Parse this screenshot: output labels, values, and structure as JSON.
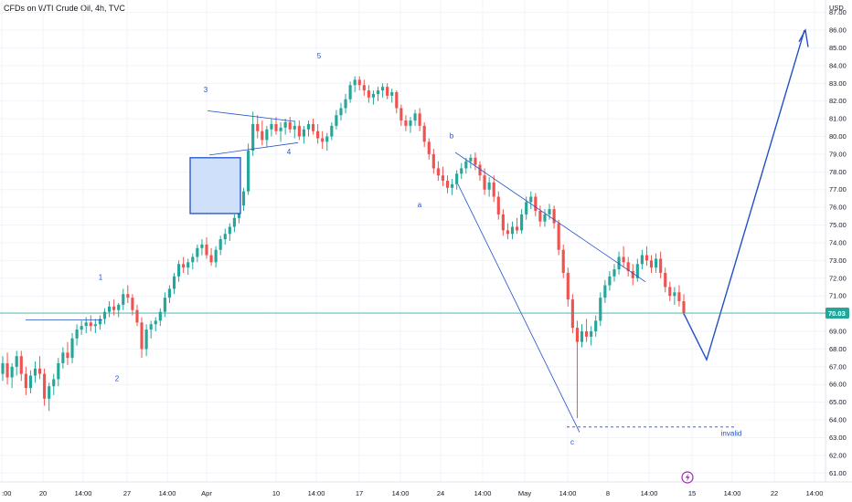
{
  "header": {
    "title": "CFDs on WTI Crude Oil, 4h, TVC"
  },
  "chart_data": {
    "type": "candlestick",
    "currency": "USD",
    "ylim": [
      60.5,
      87.6
    ],
    "y_ticks": [
      61,
      62,
      63,
      64,
      65,
      66,
      67,
      68,
      69,
      70,
      71,
      72,
      73,
      74,
      75,
      76,
      77,
      78,
      79,
      80,
      81,
      82,
      83,
      84,
      85,
      86,
      87
    ],
    "x_ticks": [
      ":00",
      "20",
      "14:00",
      "27",
      "14:00",
      "Apr",
      "10",
      "14:00",
      "17",
      "14:00",
      "24",
      "14:00",
      "May",
      "14:00",
      "8",
      "14:00",
      "15",
      "14:00",
      "22",
      "14:00"
    ],
    "last_price": "70.03",
    "colors": {
      "up": "#26a69a",
      "down": "#ef5350",
      "annotation": "#2150c8",
      "price_line": "#26a69a"
    },
    "candles": [
      [
        66.6,
        67.6,
        66.2,
        67.2
      ],
      [
        67.2,
        67.8,
        66.0,
        66.4
      ],
      [
        66.4,
        67.2,
        65.8,
        67.0
      ],
      [
        67.0,
        67.9,
        66.5,
        67.6
      ],
      [
        67.6,
        67.9,
        66.2,
        66.6
      ],
      [
        66.6,
        67.0,
        65.4,
        65.8
      ],
      [
        65.8,
        66.8,
        65.5,
        66.5
      ],
      [
        66.5,
        67.3,
        66.1,
        66.9
      ],
      [
        66.9,
        67.6,
        66.3,
        66.6
      ],
      [
        66.6,
        66.9,
        64.8,
        65.2
      ],
      [
        65.2,
        66.1,
        64.5,
        65.9
      ],
      [
        65.9,
        66.6,
        65.4,
        66.3
      ],
      [
        66.3,
        67.5,
        65.9,
        67.2
      ],
      [
        67.2,
        68.1,
        66.9,
        67.8
      ],
      [
        67.8,
        68.4,
        67.1,
        67.5
      ],
      [
        67.5,
        68.9,
        67.2,
        68.6
      ],
      [
        68.6,
        69.4,
        68.2,
        69.1
      ],
      [
        69.1,
        69.6,
        68.8,
        69.3
      ],
      [
        69.3,
        69.8,
        68.9,
        69.5
      ],
      [
        69.5,
        69.9,
        69.0,
        69.3
      ],
      [
        69.3,
        69.7,
        68.9,
        69.4
      ],
      [
        69.4,
        69.9,
        69.1,
        69.7
      ],
      [
        69.7,
        70.3,
        69.4,
        70.1
      ],
      [
        70.1,
        70.7,
        69.8,
        70.4
      ],
      [
        70.4,
        70.8,
        69.9,
        70.2
      ],
      [
        70.2,
        70.6,
        69.8,
        70.5
      ],
      [
        70.5,
        71.4,
        70.2,
        71.1
      ],
      [
        71.1,
        71.6,
        70.6,
        70.9
      ],
      [
        70.9,
        71.1,
        69.9,
        70.2
      ],
      [
        70.2,
        70.5,
        69.3,
        69.5
      ],
      [
        69.5,
        69.8,
        67.5,
        68.0
      ],
      [
        68.0,
        69.4,
        67.6,
        69.1
      ],
      [
        69.1,
        69.6,
        68.6,
        69.4
      ],
      [
        69.4,
        69.8,
        69.0,
        69.6
      ],
      [
        69.6,
        70.3,
        69.3,
        70.1
      ],
      [
        70.1,
        71.2,
        69.8,
        70.9
      ],
      [
        70.9,
        71.6,
        70.6,
        71.4
      ],
      [
        71.4,
        72.3,
        71.1,
        72.1
      ],
      [
        72.1,
        73.0,
        71.8,
        72.8
      ],
      [
        72.8,
        73.2,
        72.3,
        72.6
      ],
      [
        72.6,
        73.1,
        72.2,
        72.9
      ],
      [
        72.9,
        73.4,
        72.5,
        73.2
      ],
      [
        73.2,
        73.9,
        72.9,
        73.7
      ],
      [
        73.7,
        74.2,
        73.3,
        73.9
      ],
      [
        73.9,
        74.3,
        73.1,
        73.3
      ],
      [
        73.3,
        73.7,
        72.7,
        72.9
      ],
      [
        72.9,
        73.8,
        72.6,
        73.6
      ],
      [
        73.6,
        74.4,
        73.3,
        74.2
      ],
      [
        74.2,
        74.8,
        73.9,
        74.5
      ],
      [
        74.5,
        75.1,
        74.1,
        74.9
      ],
      [
        74.9,
        75.6,
        74.6,
        75.4
      ],
      [
        75.4,
        76.3,
        75.1,
        76.1
      ],
      [
        76.1,
        77.1,
        75.8,
        76.9
      ],
      [
        76.9,
        79.6,
        76.7,
        79.2
      ],
      [
        79.2,
        81.4,
        78.9,
        80.7
      ],
      [
        80.7,
        81.2,
        79.9,
        80.3
      ],
      [
        80.3,
        80.9,
        79.5,
        79.8
      ],
      [
        79.8,
        80.6,
        79.4,
        80.4
      ],
      [
        80.4,
        81.0,
        80.0,
        80.7
      ],
      [
        80.7,
        81.1,
        80.1,
        80.3
      ],
      [
        80.3,
        80.8,
        79.7,
        80.5
      ],
      [
        80.5,
        81.0,
        80.1,
        80.8
      ],
      [
        80.8,
        81.1,
        80.2,
        80.4
      ],
      [
        80.4,
        80.9,
        79.9,
        80.6
      ],
      [
        80.6,
        80.9,
        79.8,
        80.0
      ],
      [
        80.0,
        80.6,
        79.6,
        80.4
      ],
      [
        80.4,
        80.9,
        80.0,
        80.7
      ],
      [
        80.7,
        81.0,
        80.1,
        80.3
      ],
      [
        80.3,
        80.7,
        79.6,
        79.9
      ],
      [
        79.9,
        80.3,
        79.3,
        79.7
      ],
      [
        79.7,
        80.2,
        79.2,
        80.0
      ],
      [
        80.0,
        80.8,
        79.8,
        80.6
      ],
      [
        80.6,
        81.5,
        80.4,
        81.2
      ],
      [
        81.2,
        81.9,
        80.9,
        81.6
      ],
      [
        81.6,
        82.4,
        81.3,
        82.1
      ],
      [
        82.1,
        83.1,
        81.9,
        82.9
      ],
      [
        82.9,
        83.4,
        82.5,
        83.2
      ],
      [
        83.2,
        83.4,
        82.6,
        82.9
      ],
      [
        82.9,
        83.2,
        82.3,
        82.6
      ],
      [
        82.6,
        82.9,
        81.9,
        82.2
      ],
      [
        82.2,
        82.6,
        81.8,
        82.4
      ],
      [
        82.4,
        82.8,
        82.0,
        82.6
      ],
      [
        82.6,
        83.0,
        82.2,
        82.8
      ],
      [
        82.8,
        83.0,
        82.1,
        82.3
      ],
      [
        82.3,
        82.7,
        81.9,
        82.5
      ],
      [
        82.5,
        82.6,
        81.3,
        81.6
      ],
      [
        81.6,
        81.8,
        80.6,
        80.9
      ],
      [
        80.9,
        81.2,
        80.3,
        80.6
      ],
      [
        80.6,
        81.1,
        80.2,
        80.9
      ],
      [
        80.9,
        81.5,
        80.6,
        81.3
      ],
      [
        81.3,
        81.6,
        80.3,
        80.6
      ],
      [
        80.6,
        80.8,
        79.4,
        79.7
      ],
      [
        79.7,
        79.9,
        78.7,
        79.0
      ],
      [
        79.0,
        79.3,
        77.9,
        78.2
      ],
      [
        78.2,
        78.6,
        77.5,
        77.8
      ],
      [
        77.8,
        78.3,
        77.2,
        77.5
      ],
      [
        77.5,
        77.8,
        76.8,
        77.1
      ],
      [
        77.1,
        77.6,
        76.7,
        77.3
      ],
      [
        77.3,
        78.1,
        77.0,
        77.9
      ],
      [
        77.9,
        78.5,
        77.6,
        78.2
      ],
      [
        78.2,
        78.8,
        77.9,
        78.6
      ],
      [
        78.6,
        79.0,
        78.2,
        78.8
      ],
      [
        78.8,
        79.1,
        78.1,
        78.4
      ],
      [
        78.4,
        78.6,
        77.5,
        77.8
      ],
      [
        77.8,
        78.2,
        76.7,
        77.0
      ],
      [
        77.0,
        77.7,
        76.6,
        77.4
      ],
      [
        77.4,
        77.8,
        76.3,
        76.6
      ],
      [
        76.6,
        76.9,
        75.3,
        75.6
      ],
      [
        75.6,
        75.9,
        74.4,
        74.7
      ],
      [
        74.7,
        75.1,
        74.2,
        74.5
      ],
      [
        74.5,
        75.2,
        74.2,
        74.9
      ],
      [
        74.9,
        75.4,
        74.5,
        74.7
      ],
      [
        74.7,
        75.9,
        74.5,
        75.6
      ],
      [
        75.6,
        76.6,
        75.3,
        76.3
      ],
      [
        76.3,
        76.9,
        75.9,
        76.6
      ],
      [
        76.6,
        76.8,
        75.5,
        75.8
      ],
      [
        75.8,
        76.1,
        74.9,
        75.2
      ],
      [
        75.2,
        75.9,
        74.9,
        75.6
      ],
      [
        75.6,
        76.2,
        75.3,
        75.9
      ],
      [
        75.9,
        76.1,
        74.8,
        75.1
      ],
      [
        75.1,
        75.3,
        73.3,
        73.6
      ],
      [
        73.6,
        73.9,
        72.0,
        72.3
      ],
      [
        72.3,
        72.6,
        70.4,
        70.8
      ],
      [
        70.8,
        71.1,
        68.9,
        69.2
      ],
      [
        69.2,
        69.6,
        64.1,
        68.4
      ],
      [
        68.4,
        69.4,
        68.1,
        69.0
      ],
      [
        69.0,
        69.7,
        68.4,
        68.7
      ],
      [
        68.7,
        69.3,
        68.2,
        69.0
      ],
      [
        69.0,
        69.9,
        68.7,
        69.6
      ],
      [
        69.6,
        71.2,
        69.3,
        70.9
      ],
      [
        70.9,
        71.9,
        70.6,
        71.6
      ],
      [
        71.6,
        72.4,
        71.3,
        72.1
      ],
      [
        72.1,
        72.8,
        71.8,
        72.5
      ],
      [
        72.5,
        73.5,
        72.2,
        73.2
      ],
      [
        73.2,
        73.8,
        72.6,
        72.9
      ],
      [
        72.9,
        73.2,
        72.1,
        72.4
      ],
      [
        72.4,
        72.8,
        71.6,
        72.0
      ],
      [
        72.0,
        73.1,
        71.8,
        72.8
      ],
      [
        72.8,
        73.6,
        72.5,
        73.3
      ],
      [
        73.3,
        73.8,
        72.7,
        73.0
      ],
      [
        73.0,
        73.3,
        72.3,
        72.6
      ],
      [
        72.6,
        73.4,
        72.3,
        73.1
      ],
      [
        73.1,
        73.5,
        72.0,
        72.3
      ],
      [
        72.3,
        72.6,
        71.2,
        71.5
      ],
      [
        71.5,
        71.8,
        70.7,
        71.0
      ],
      [
        71.0,
        71.5,
        70.5,
        71.2
      ],
      [
        71.2,
        71.6,
        70.4,
        70.7
      ],
      [
        70.7,
        71.1,
        69.9,
        70.03
      ]
    ],
    "wave_labels": [
      {
        "text": "1",
        "x": 110,
        "y": 71.9
      },
      {
        "text": "2",
        "x": 128,
        "y": 66.2
      },
      {
        "text": "3",
        "x": 225,
        "y": 82.5
      },
      {
        "text": "4",
        "x": 316,
        "y": 79.0
      },
      {
        "text": "5",
        "x": 349,
        "y": 84.4
      },
      {
        "text": "a",
        "x": 459,
        "y": 76.0
      },
      {
        "text": "b",
        "x": 494,
        "y": 79.9
      },
      {
        "text": "c",
        "x": 626,
        "y": 62.6
      },
      {
        "text": "invalid",
        "x": 800,
        "y": 63.1
      }
    ]
  }
}
